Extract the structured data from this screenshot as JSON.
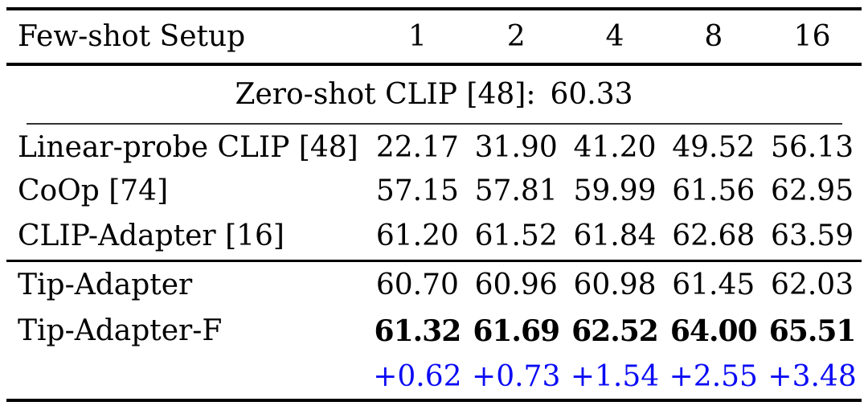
{
  "table": {
    "header": {
      "label": "Few-shot Setup",
      "shots": [
        "1",
        "2",
        "4",
        "8",
        "16"
      ]
    },
    "zero_shot": {
      "label": "Zero-shot CLIP [48]:",
      "value": "60.33"
    },
    "baselines": [
      {
        "method": "Linear-probe CLIP [48]",
        "values": [
          "22.17",
          "31.90",
          "41.20",
          "49.52",
          "56.13"
        ]
      },
      {
        "method": "CoOp [74]",
        "values": [
          "57.15",
          "57.81",
          "59.99",
          "61.56",
          "62.95"
        ]
      },
      {
        "method": "CLIP-Adapter [16]",
        "values": [
          "61.20",
          "61.52",
          "61.84",
          "62.68",
          "63.59"
        ]
      }
    ],
    "ours": [
      {
        "method": "Tip-Adapter",
        "bold": false,
        "values": [
          "60.70",
          "60.96",
          "60.98",
          "61.45",
          "62.03"
        ]
      },
      {
        "method": "Tip-Adapter-F",
        "bold": true,
        "values": [
          "61.32",
          "61.69",
          "62.52",
          "64.00",
          "65.51"
        ]
      }
    ],
    "gains": {
      "values": [
        "+0.62",
        "+0.73",
        "+1.54",
        "+2.55",
        "+3.48"
      ]
    },
    "colors": {
      "text": "#000000",
      "gain_blue": "#0b0bf5",
      "rule_heavy": "#000000",
      "rule_thin": "#333333"
    }
  }
}
